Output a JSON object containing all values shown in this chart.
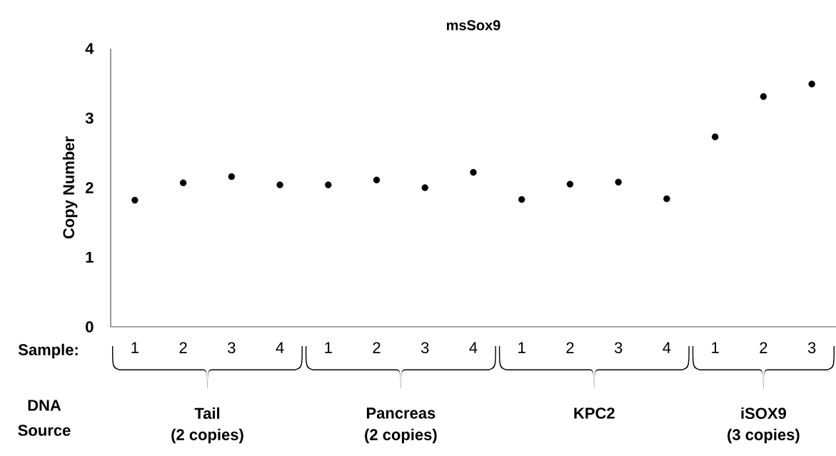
{
  "chart_data": {
    "type": "scatter",
    "title": "msSox9",
    "ylabel": "Copy Number",
    "categories": [
      "1",
      "2",
      "3",
      "4",
      "1",
      "2",
      "3",
      "4",
      "1",
      "2",
      "3",
      "4",
      "1",
      "2",
      "3"
    ],
    "values": [
      1.82,
      2.07,
      2.16,
      2.04,
      2.04,
      2.11,
      2.0,
      2.22,
      1.83,
      2.05,
      2.08,
      1.84,
      2.73,
      3.31,
      3.49
    ],
    "color": "#000000",
    "marker": "circle",
    "ylim": [
      0,
      4
    ],
    "yticks": [
      0,
      1,
      2,
      3,
      4
    ],
    "annotations": [
      "Sample:",
      "DNA",
      "Source",
      "Tail",
      "(2 copies)",
      "Pancreas",
      "(2 copies)",
      "KPC2",
      "iSOX9",
      "(3 copies)"
    ]
  }
}
